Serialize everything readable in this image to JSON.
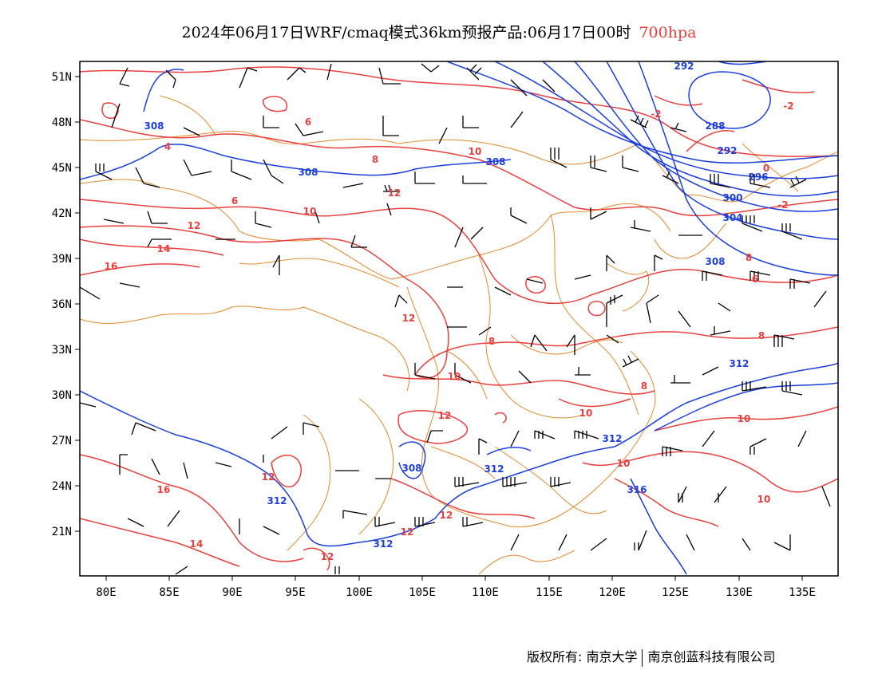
{
  "title": {
    "main": "2024年06月17日WRF/cmaq模式36km预报产品:06月17日00时",
    "level": "700hpa"
  },
  "colors": {
    "temperature": "#e8403e",
    "geopotential": "#1c3fdc",
    "boundary": "#e08a2c",
    "wind": "#000000",
    "level_text": "#e8403e"
  },
  "axes": {
    "lat_labels": [
      "51N",
      "48N",
      "45N",
      "42N",
      "39N",
      "36N",
      "33N",
      "30N",
      "27N",
      "24N",
      "21N"
    ],
    "lon_labels": [
      "80E",
      "85E",
      "90E",
      "95E",
      "100E",
      "105E",
      "110E",
      "115E",
      "120E",
      "125E",
      "130E",
      "135E"
    ]
  },
  "temperature_labels": [
    "-2",
    "-2",
    "0",
    "-2",
    "4",
    "6",
    "6",
    "8",
    "6",
    "8",
    "10",
    "12",
    "10",
    "8",
    "12",
    "14",
    "16",
    "12",
    "8",
    "10",
    "12",
    "8",
    "10",
    "10",
    "12",
    "16",
    "12",
    "12",
    "14",
    "12",
    "10",
    "10"
  ],
  "height_labels": [
    "292",
    "308",
    "288",
    "292",
    "296",
    "300",
    "304",
    "308",
    "308",
    "308",
    "312",
    "312",
    "308",
    "312",
    "312",
    "316",
    "312"
  ],
  "footer": {
    "left": "版权所有: 南京大学",
    "right": "南京创蓝科技有限公司"
  }
}
